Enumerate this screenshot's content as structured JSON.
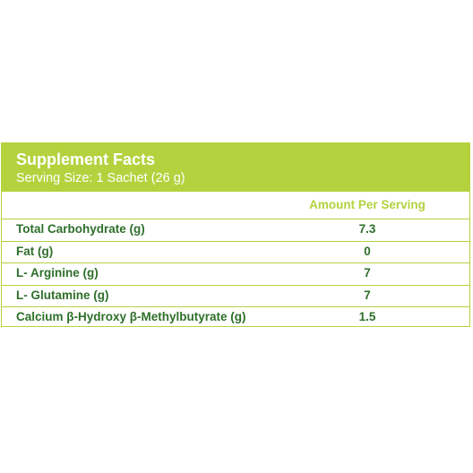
{
  "label": {
    "title": "Supplement Facts",
    "serving_size": "Serving Size: 1 Sachet (26 g)",
    "column_header": "Amount Per Serving",
    "rows": [
      {
        "name": "Total Carbohydrate (g)",
        "amount": "7.3"
      },
      {
        "name": "Fat (g)",
        "amount": "0"
      },
      {
        "name": "L- Arginine (g)",
        "amount": "7"
      },
      {
        "name": "L- Glutamine (g)",
        "amount": "7"
      },
      {
        "name": "Calcium β-Hydroxy β-Methylbutyrate (g)",
        "amount": "1.5"
      }
    ]
  },
  "colors": {
    "accent": "#b4d23e",
    "text": "#2f6f2a",
    "header_text": "#ffffff"
  }
}
